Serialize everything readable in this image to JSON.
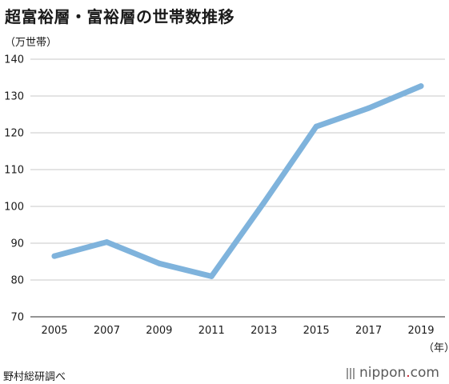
{
  "title": "超富裕層・富裕層の世帯数推移",
  "y_unit": "（万世帯）",
  "x_unit": "（年）",
  "source": "野村総研調べ",
  "logo": {
    "name": "nippon",
    "dot": ".",
    "suffix": "com",
    "color": "#c8101e"
  },
  "chart_data": {
    "type": "line",
    "title": "超富裕層・富裕層の世帯数推移",
    "xlabel": "（年）",
    "ylabel": "（万世帯）",
    "x": [
      2005,
      2007,
      2009,
      2011,
      2013,
      2015,
      2017,
      2019
    ],
    "x_ticks": [
      "2005",
      "2007",
      "2009",
      "2011",
      "2013",
      "2015",
      "2017",
      "2019"
    ],
    "series": [
      {
        "values": [
          86.5,
          90.3,
          84.5,
          81.0,
          101.0,
          121.7,
          126.7,
          132.7
        ],
        "color": "#7fb3dc"
      }
    ],
    "ylim": [
      70,
      140
    ],
    "y_ticks": [
      70,
      80,
      90,
      100,
      110,
      120,
      130,
      140
    ],
    "grid": true,
    "legend": "none"
  }
}
